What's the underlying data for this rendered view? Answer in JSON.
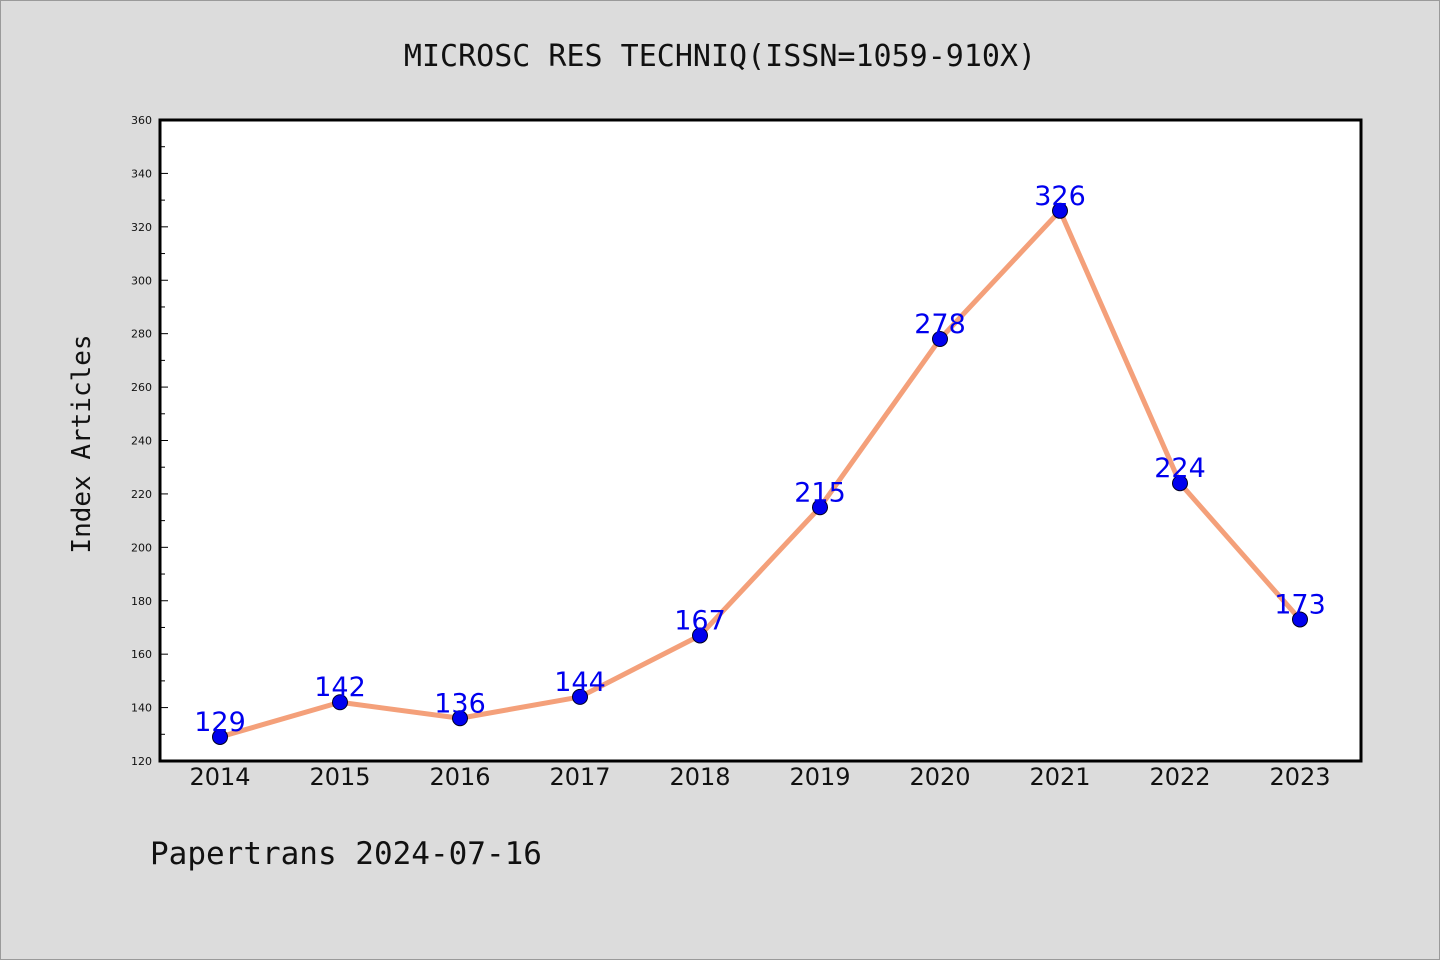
{
  "chart_data": {
    "type": "line",
    "title": "MICROSC RES TECHNIQ(ISSN=1059-910X)",
    "xlabel": "",
    "ylabel": "Index Articles",
    "categories": [
      "2014",
      "2015",
      "2016",
      "2017",
      "2018",
      "2019",
      "2020",
      "2021",
      "2022",
      "2023"
    ],
    "values": [
      129,
      142,
      136,
      144,
      167,
      215,
      278,
      326,
      224,
      173
    ],
    "ylim": [
      120,
      360
    ],
    "yticks": [
      120,
      140,
      160,
      180,
      200,
      220,
      240,
      260,
      280,
      300,
      320,
      340,
      360
    ],
    "line_color": "#f4a07a",
    "marker_color": "#0000ee",
    "label_color": "#0000ee",
    "grid": false,
    "legend": "none"
  },
  "footer": {
    "text": "Papertrans 2024-07-16"
  }
}
